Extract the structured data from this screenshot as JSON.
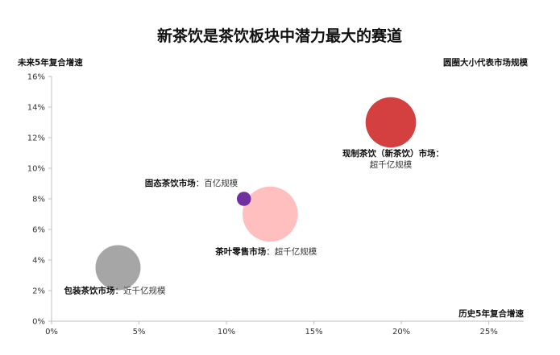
{
  "chart_data": {
    "type": "scatter",
    "title": "新茶饮是茶饮板块中潜力最大的赛道",
    "ylabel": "未来5年复合增速",
    "xlabel": "历史5年复合增速",
    "size_note": "圆圈大小代表市场规模",
    "xlim": [
      0,
      0.27
    ],
    "ylim": [
      0,
      0.16
    ],
    "x_ticks": [
      "0%",
      "5%",
      "10%",
      "15%",
      "20%",
      "25%"
    ],
    "x_tick_values": [
      0,
      0.05,
      0.1,
      0.15,
      0.2,
      0.25
    ],
    "y_ticks": [
      "0%",
      "2%",
      "4%",
      "6%",
      "8%",
      "10%",
      "12%",
      "14%",
      "16%"
    ],
    "y_tick_values": [
      0,
      0.02,
      0.04,
      0.06,
      0.08,
      0.1,
      0.12,
      0.14,
      0.16
    ],
    "grid": false,
    "series": [
      {
        "x": 0.038,
        "y": 0.035,
        "size": 4,
        "color": "#a6a6a6",
        "label_bold": "包装茶饮市场",
        "label_normal": "：近千亿规模",
        "label_layout": "inline"
      },
      {
        "x": 0.125,
        "y": 0.07,
        "size": 6,
        "color": "#ffbfbf",
        "label_bold": "茶叶零售市场",
        "label_normal": "：超千亿规模",
        "label_layout": "inline"
      },
      {
        "x": 0.11,
        "y": 0.08,
        "size": 0.8,
        "color": "#7030a0",
        "label_bold": "固态茶饮市场",
        "label_normal": "：百亿规模",
        "label_layout": "inline"
      },
      {
        "x": 0.194,
        "y": 0.13,
        "size": 5,
        "color": "#d43f3f",
        "label_bold": "现制茶饮（新茶饮）市场",
        "label_normal": "超千亿规模",
        "label_layout": "stacked"
      }
    ]
  }
}
